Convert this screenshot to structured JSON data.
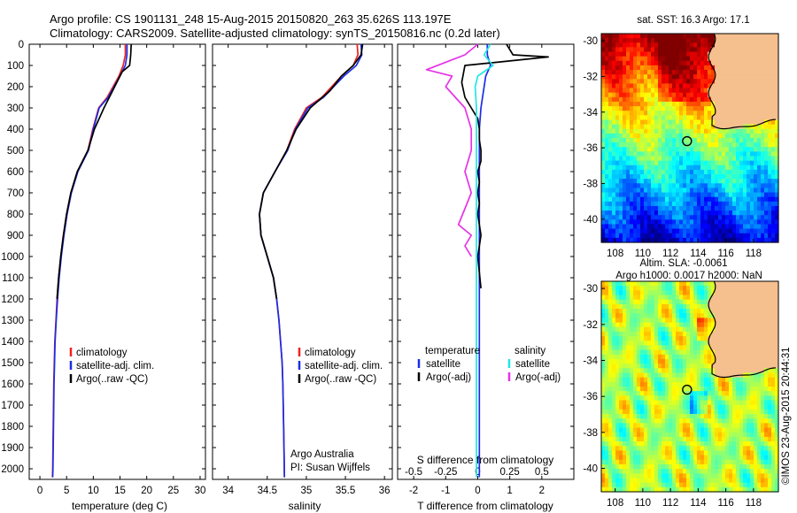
{
  "header": {
    "line1": "Argo profile: CS 1901131_248 15-Aug-2015 20150820_263 35.626S 113.197E",
    "line2": "Climatology: CARS2009. Satellite-adjusted climatology: synTS_20150816.nc (0.2d later)"
  },
  "depth_ticks": [
    0,
    100,
    200,
    300,
    400,
    500,
    600,
    700,
    800,
    900,
    1000,
    1100,
    1200,
    1300,
    1400,
    1500,
    1600,
    1700,
    1800,
    1900,
    2000
  ],
  "colors": {
    "climatology": "#ee2222",
    "satellite": "#1a2ee6",
    "argo": "#000000",
    "sat_salinity": "#22e6e6",
    "argo_salinity": "#e633e6",
    "land": "#f5bf8e"
  },
  "chart_data": [
    {
      "type": "line",
      "name": "temperature",
      "xlabel": "temperature (deg C)",
      "ylabel": "",
      "xlim": [
        -2,
        31
      ],
      "ylim": [
        2050,
        0
      ],
      "xticks": [
        0,
        5,
        10,
        15,
        20,
        25,
        30
      ],
      "legend": [
        "climatology",
        "satellite-adj. clim.",
        "Argo(..raw -QC)"
      ],
      "series": [
        {
          "name": "climatology",
          "x": [
            16.0,
            16.0,
            15.6,
            14.8,
            12.6,
            11.0,
            9.9,
            9.0,
            7.0,
            5.8,
            5.0,
            4.4,
            3.9,
            3.5,
            3.2,
            3.0,
            2.8,
            2.7,
            2.6,
            2.5,
            2.4,
            2.35
          ],
          "y": [
            0,
            50,
            100,
            150,
            250,
            300,
            400,
            500,
            600,
            700,
            800,
            900,
            1000,
            1100,
            1200,
            1300,
            1400,
            1500,
            1600,
            1800,
            2000,
            2040
          ]
        },
        {
          "name": "satellite-adj. clim.",
          "x": [
            16.3,
            16.3,
            16.0,
            15.0,
            12.8,
            11.1,
            10.0,
            9.1,
            7.1,
            5.9,
            5.1,
            4.5,
            4.0,
            3.6,
            3.3,
            3.05,
            2.85,
            2.75,
            2.65,
            2.55,
            2.45,
            2.4
          ],
          "y": [
            0,
            50,
            100,
            150,
            250,
            300,
            400,
            500,
            600,
            700,
            800,
            900,
            1000,
            1100,
            1200,
            1300,
            1400,
            1500,
            1600,
            1800,
            2000,
            2040
          ]
        },
        {
          "name": "Argo(..raw -QC)",
          "x": [
            17.1,
            17.0,
            16.8,
            15.4,
            14.0,
            12.0,
            10.2,
            9.0,
            7.0,
            5.8,
            5.0,
            4.4,
            3.9,
            3.5,
            3.2
          ],
          "y": [
            0,
            50,
            100,
            130,
            200,
            300,
            400,
            500,
            600,
            700,
            800,
            900,
            1000,
            1100,
            1200
          ]
        }
      ],
      "annotations": []
    },
    {
      "type": "line",
      "name": "salinity",
      "xlabel": "salinity",
      "ylabel": "",
      "xlim": [
        33.8,
        36.1
      ],
      "ylim": [
        2050,
        0
      ],
      "xticks": [
        34,
        34.5,
        35,
        35.5,
        36
      ],
      "legend": [
        "climatology",
        "satellite-adj. clim.",
        "Argo(..raw -QC)"
      ],
      "series": [
        {
          "name": "climatology",
          "x": [
            35.65,
            35.66,
            35.6,
            35.45,
            35.2,
            35.0,
            34.85,
            34.75,
            34.6,
            34.45,
            34.4,
            34.42,
            34.5,
            34.58,
            34.62,
            34.65,
            34.67,
            34.69,
            34.7,
            34.71,
            34.72
          ],
          "y": [
            0,
            50,
            100,
            150,
            250,
            300,
            400,
            500,
            600,
            700,
            800,
            900,
            1000,
            1100,
            1200,
            1300,
            1400,
            1500,
            1600,
            1800,
            2040
          ]
        },
        {
          "name": "satellite-adj. clim.",
          "x": [
            35.7,
            35.71,
            35.64,
            35.48,
            35.22,
            35.02,
            34.86,
            34.76,
            34.6,
            34.45,
            34.4,
            34.42,
            34.5,
            34.58,
            34.62,
            34.65,
            34.67,
            34.69,
            34.7,
            34.71,
            34.72
          ],
          "y": [
            0,
            50,
            100,
            150,
            250,
            300,
            400,
            500,
            600,
            700,
            800,
            900,
            1000,
            1100,
            1200,
            1300,
            1400,
            1500,
            1600,
            1800,
            2040
          ]
        },
        {
          "name": "Argo(..raw -QC)",
          "x": [
            35.72,
            35.7,
            35.6,
            35.45,
            35.3,
            35.05,
            34.87,
            34.75,
            34.6,
            34.45,
            34.4,
            34.42,
            34.5,
            34.58,
            34.62
          ],
          "y": [
            0,
            50,
            100,
            150,
            220,
            300,
            400,
            500,
            600,
            700,
            800,
            900,
            1000,
            1100,
            1200
          ]
        }
      ],
      "annotations": [
        "Argo Australia",
        "PI: Susan Wijffels"
      ]
    },
    {
      "type": "line",
      "name": "differences",
      "xlabel": "T difference from climatology",
      "xlabel_top": "S difference from climatology",
      "xlim": [
        -2.5,
        3.0
      ],
      "ylim": [
        2050,
        0
      ],
      "xticks": [
        -2,
        -1,
        0,
        1,
        2
      ],
      "sticks": [
        "-0.5",
        "-0.25",
        "0",
        "0.25",
        "0.5"
      ],
      "legend": {
        "left_title": "temperature",
        "right_title": "salinity",
        "left": [
          "satellite",
          "Argo(-adj)"
        ],
        "right": [
          "satellite",
          "Argo(-adj)"
        ]
      },
      "series": [
        {
          "name": "T satellite",
          "x": [
            0.3,
            0.3,
            0.4,
            0.25,
            0.2,
            0.1,
            0.05,
            0.05,
            0.05,
            0.05,
            0.05,
            0.05,
            0.05,
            0.05,
            0.05,
            0.05
          ],
          "y": [
            0,
            50,
            100,
            150,
            200,
            300,
            400,
            500,
            600,
            700,
            800,
            900,
            1000,
            1400,
            1800,
            2040
          ]
        },
        {
          "name": "T Argo(-adj)",
          "x": [
            0.9,
            1.1,
            2.2,
            0.6,
            -0.4,
            -0.5,
            -0.4,
            -0.2,
            0.0,
            0.05,
            0.05,
            0.1,
            0.1,
            0.0,
            0.05,
            0.0,
            0.05,
            0.0,
            0.1,
            0.0,
            0.1
          ],
          "y": [
            0,
            50,
            60,
            85,
            100,
            180,
            250,
            300,
            350,
            400,
            450,
            500,
            550,
            600,
            650,
            700,
            750,
            800,
            900,
            1000,
            1150
          ]
        },
        {
          "name": "S satellite",
          "x": [
            0.1,
            0.05,
            0.12,
            0.0,
            -0.02,
            -0.01,
            -0.01,
            -0.01,
            -0.01,
            -0.01,
            -0.01
          ],
          "y": [
            0,
            50,
            100,
            150,
            200,
            300,
            500,
            800,
            1200,
            1600,
            2040
          ]
        },
        {
          "name": "S Argo(-adj)",
          "x": [
            0.0,
            -0.1,
            -0.4,
            -0.2,
            -0.25,
            -0.1,
            -0.05,
            -0.05,
            -0.1,
            -0.05,
            -0.15,
            -0.05,
            -0.1,
            -0.05
          ],
          "y": [
            0,
            50,
            120,
            150,
            200,
            300,
            400,
            500,
            600,
            700,
            850,
            900,
            950,
            1000
          ]
        }
      ]
    },
    {
      "type": "heatmap",
      "name": "sst_map",
      "title": "sat. SST: 16.3 Argo: 17.1",
      "xticks": [
        108,
        110,
        112,
        114,
        116,
        118
      ],
      "yticks": [
        -30,
        -32,
        -34,
        -36,
        -38,
        -40
      ],
      "xlim": [
        107,
        119.8
      ],
      "ylim": [
        -41.3,
        -29.6
      ],
      "marker": {
        "lon": 113.197,
        "lat": -35.626
      }
    },
    {
      "type": "heatmap",
      "name": "sla_map",
      "title_line1": "Altim. SLA: -0.0061",
      "title_line2": "Argo h1000: 0.0017 h2000: NaN",
      "xticks": [
        108,
        110,
        112,
        114,
        116,
        118
      ],
      "yticks": [
        -30,
        -32,
        -34,
        -36,
        -38,
        -40
      ],
      "xlim": [
        107,
        119.8
      ],
      "ylim": [
        -41.3,
        -29.6
      ],
      "marker": {
        "lon": 113.197,
        "lat": -35.626
      }
    }
  ],
  "watermark": "©IMOS 23-Aug-2015 20:44:31"
}
